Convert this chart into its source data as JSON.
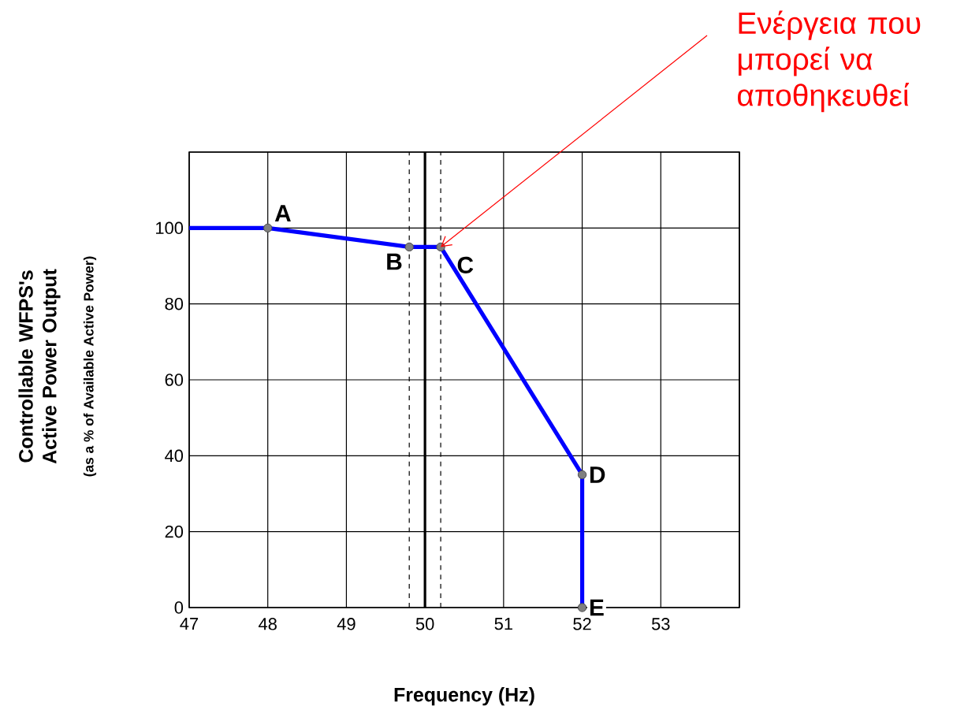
{
  "chart_data": {
    "type": "line",
    "xlabel": "Frequency (Hz)",
    "series": [
      {
        "color": "#0000ff",
        "x": [
          47,
          48,
          49.8,
          50.2,
          52,
          52
        ],
        "values": [
          100,
          100,
          95,
          95,
          35,
          0
        ]
      },
      {
        "type": "scatter",
        "color": "#808080",
        "marker": "circle",
        "x": [
          48,
          49.8,
          50.2,
          52,
          52
        ],
        "values": [
          100,
          95,
          95,
          35,
          0
        ]
      }
    ],
    "xlim": [
      47,
      54
    ],
    "ylim": [
      0,
      120
    ],
    "xticks": [
      47,
      48,
      49,
      50,
      51,
      52,
      53,
      {
        "value": 54,
        "label": null
      }
    ],
    "yticks": [
      0,
      20,
      40,
      60,
      80,
      100,
      {
        "value": 120,
        "label": null
      }
    ],
    "grid": true,
    "ref_lines": [
      {
        "axis": "x",
        "value": 49.8,
        "color": "#000000",
        "line_style": "dashed"
      },
      {
        "axis": "x",
        "value": 50,
        "color": "#000000",
        "line_style": "solid"
      },
      {
        "axis": "x",
        "value": 50.2,
        "color": "#000000",
        "line_style": "dashed"
      }
    ],
    "annotations": [
      "Controllable WFPS's Active Power Output",
      "(as a % of Available Active Power)",
      {
        "text": "Ενέργεια που μπορεί να αποθηκευθεί",
        "x": 50.2,
        "y": 95
      },
      {
        "text": "A",
        "x": 48,
        "y": 100
      },
      {
        "text": "B",
        "x": 49.8,
        "y": 95
      },
      {
        "text": "C",
        "x": 50.2,
        "y": 95
      },
      {
        "text": "D",
        "x": 52,
        "y": 35
      },
      {
        "text": "E",
        "x": 52,
        "y": 0
      }
    ]
  }
}
